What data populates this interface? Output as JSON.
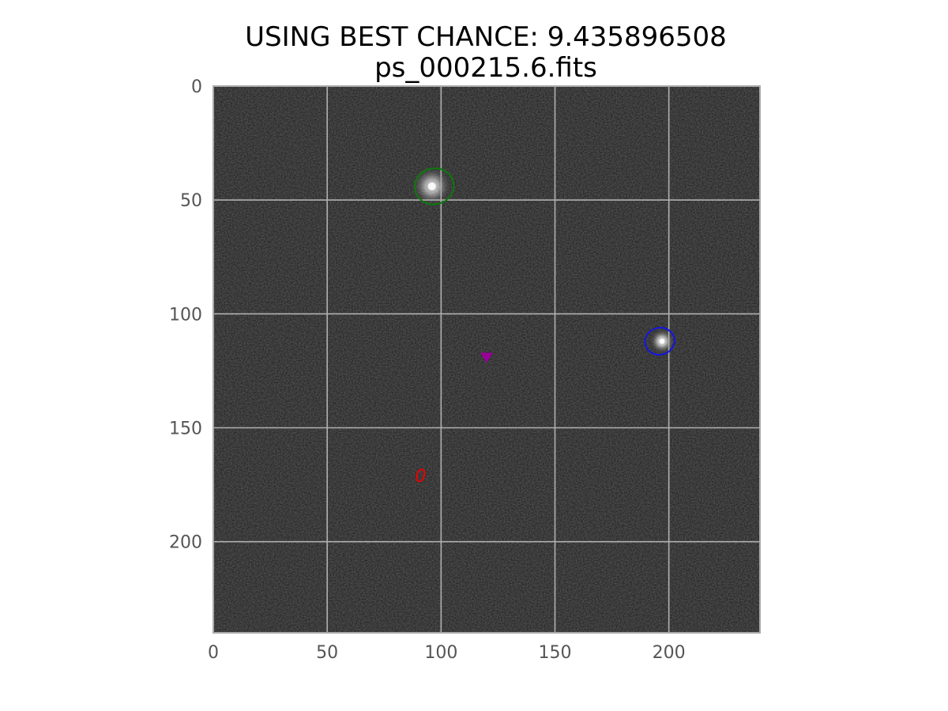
{
  "chart_data": {
    "type": "heatmap",
    "title": [
      "USING BEST CHANCE: 9.435896508",
      "ps_000215.6.fits"
    ],
    "xlabel": "",
    "ylabel": "",
    "xlim": [
      0,
      240
    ],
    "ylim": [
      240,
      0
    ],
    "x_ticks": [
      0,
      50,
      100,
      150,
      200
    ],
    "y_ticks": [
      0,
      50,
      100,
      150,
      200
    ],
    "grid": true,
    "image": {
      "colormap": "gray",
      "background_level": 0.11,
      "sources": [
        {
          "x": 96,
          "y": 44,
          "peak": 0.85,
          "sigma": 3.5
        },
        {
          "x": 197,
          "y": 112,
          "peak": 1.0,
          "sigma": 2.2
        }
      ]
    },
    "annotations": [
      {
        "kind": "ellipse",
        "x": 97,
        "y": 44,
        "rx": 8.6,
        "ry": 7.9,
        "color": "#0b7a0b"
      },
      {
        "kind": "ellipse",
        "x": 196,
        "y": 112,
        "rx": 6.5,
        "ry": 5.9,
        "color": "#1414e6"
      },
      {
        "kind": "marker",
        "shape": "triangle-down",
        "x": 120,
        "y": 119,
        "color": "#990099"
      },
      {
        "kind": "text",
        "x": 91,
        "y": 171,
        "text": "0",
        "color": "#ee0000"
      }
    ]
  }
}
